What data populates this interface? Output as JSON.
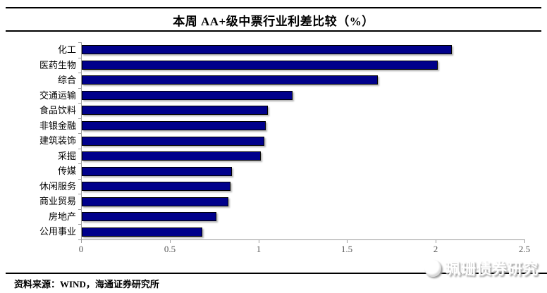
{
  "title": "本周 AA+级中票行业利差比较（%）",
  "chart_data": {
    "type": "bar",
    "orientation": "horizontal",
    "title": "本周 AA+级中票行业利差比较（%）",
    "categories": [
      "化工",
      "医药生物",
      "综合",
      "交通运输",
      "食品饮料",
      "非银金融",
      "建筑装饰",
      "采掘",
      "传媒",
      "休闲服务",
      "商业贸易",
      "房地产",
      "公用事业"
    ],
    "values": [
      2.08,
      2.0,
      1.66,
      1.18,
      1.04,
      1.03,
      1.02,
      1.0,
      0.84,
      0.83,
      0.82,
      0.75,
      0.67
    ],
    "xlabel": "",
    "ylabel": "",
    "xlim": [
      0,
      2.5
    ],
    "xticks": [
      0,
      0.5,
      1,
      1.5,
      2,
      2.5
    ],
    "xtick_labels": [
      "0",
      "0.5",
      "1",
      "1.5",
      "2",
      "2.5"
    ],
    "grid": false,
    "legend": null,
    "bar_color": "#00008B",
    "bar_border_color": "#000000",
    "axis_color": "#9a9a9a",
    "tick_label_color": "#555555"
  },
  "footer": {
    "source": "资料来源：WIND，海通证券研究所"
  },
  "watermark": {
    "text": "珮珊债券研究",
    "icon": "cat-face-logo-icon"
  }
}
